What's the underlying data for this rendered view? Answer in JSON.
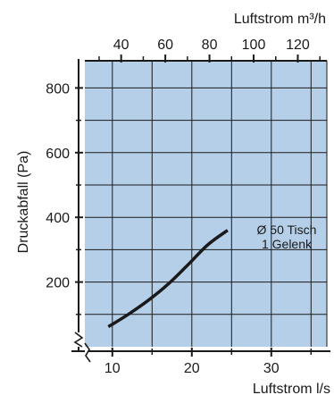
{
  "chart_data": {
    "type": "line",
    "title": "",
    "xlabel": "Luftstrom  l/s",
    "x2label": "Luftstrom  m³/h",
    "ylabel": "Druckabfall (Pa)",
    "xlim": [
      6,
      37
    ],
    "ylim": [
      0,
      870
    ],
    "x_ticks": [
      "10",
      "20",
      "30"
    ],
    "x_tick_values": [
      10,
      20,
      30
    ],
    "x2_ticks": [
      "40",
      "60",
      "80",
      "100",
      "120"
    ],
    "x2_tick_values": [
      40,
      60,
      80,
      100,
      120
    ],
    "y_ticks": [
      "200",
      "400",
      "600",
      "800"
    ],
    "y_tick_values": [
      200,
      400,
      600,
      800
    ],
    "grid": true,
    "axis_break": true,
    "background_color": "#b6cfe9",
    "series": [
      {
        "name": "Ø 50 Tisch",
        "name_line2": "1 Gelenk",
        "color": "#1a1a1a",
        "x": [
          9.5,
          12,
          14.5,
          17,
          19.5,
          22,
          24.5
        ],
        "y": [
          62,
          100,
          143,
          193,
          253,
          315,
          360
        ]
      }
    ]
  }
}
